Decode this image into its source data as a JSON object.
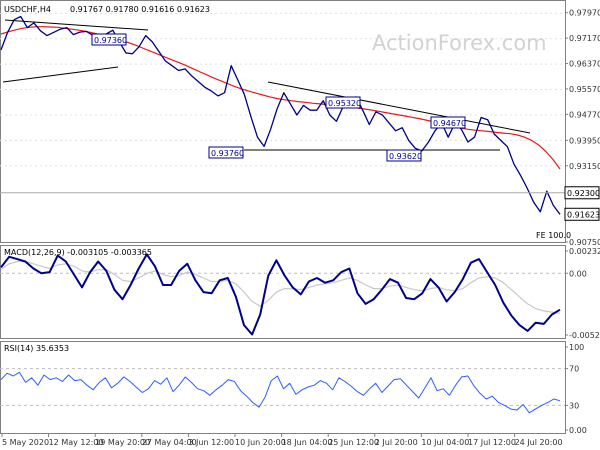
{
  "header": {
    "symbol": "USDCHF,H4",
    "ohlc": "0.91767 0.91780 0.91616 0.91623"
  },
  "watermark": "ActionForex.com",
  "colors": {
    "price": "#00008b",
    "ma": "#e31a1c",
    "macd": "#00008b",
    "signal": "#c8c8c8",
    "rsi": "#2e5cff",
    "trendline": "#000000",
    "axis": "#808080",
    "grid": "#e0e0e0"
  },
  "chart_data": [
    {
      "type": "line",
      "panel": "price",
      "y_ticks": [
        "0.97970",
        "0.97170",
        "0.96370",
        "0.95570",
        "0.94770",
        "0.93950",
        "0.93150",
        "0.90750"
      ],
      "ylim": [
        0.9075,
        0.9837
      ],
      "price_boxes": [
        "0.92300",
        "0.91623"
      ],
      "fe_label": "FE 100.0",
      "annotations": [
        "0.97360",
        "0.95320",
        "0.94670",
        "0.93760",
        "0.93620"
      ],
      "series": [
        {
          "values": [
            0.968,
            0.9735,
            0.9775,
            0.9785,
            0.975,
            0.9765,
            0.974,
            0.9725,
            0.9735,
            0.9745,
            0.975,
            0.9728,
            0.9736,
            0.9738,
            0.9725,
            0.971,
            0.973,
            0.9742,
            0.9705,
            0.967,
            0.9668,
            0.969,
            0.9725,
            0.9705,
            0.9675,
            0.9645,
            0.963,
            0.9615,
            0.962,
            0.9598,
            0.958,
            0.9562,
            0.955,
            0.9535,
            0.9545,
            0.963,
            0.9585,
            0.954,
            0.947,
            0.9405,
            0.9376,
            0.943,
            0.9495,
            0.9545,
            0.951,
            0.9475,
            0.9505,
            0.949,
            0.949,
            0.952,
            0.9475,
            0.9455,
            0.95,
            0.9525,
            0.9532,
            0.949,
            0.9445,
            0.9485,
            0.9475,
            0.945,
            0.9425,
            0.9435,
            0.9395,
            0.937,
            0.9362,
            0.939,
            0.9425,
            0.945,
            0.9405,
            0.9448,
            0.943,
            0.939,
            0.9405,
            0.9467,
            0.946,
            0.9415,
            0.9395,
            0.9375,
            0.932,
            0.9285,
            0.9245,
            0.92,
            0.917,
            0.9235,
            0.919,
            0.9162
          ]
        },
        {
          "values": [
            0.973,
            0.9737,
            0.9743,
            0.9748,
            0.9751,
            0.9753,
            0.9753,
            0.9752,
            0.9751,
            0.9748,
            0.9745,
            0.9742,
            0.9738,
            0.9733,
            0.9728,
            0.9722,
            0.9716,
            0.971,
            0.9703,
            0.9695,
            0.9686,
            0.9677,
            0.9668,
            0.9659,
            0.965,
            0.9641,
            0.9632,
            0.9622,
            0.9612,
            0.9602,
            0.9592,
            0.9583,
            0.9574,
            0.9565,
            0.9557,
            0.955,
            0.9544,
            0.9538,
            0.9532,
            0.9527,
            0.9523,
            0.952,
            0.9517,
            0.9515,
            0.9512,
            0.951,
            0.9508,
            0.9506,
            0.9504,
            0.9502,
            0.9498,
            0.9495,
            0.9492,
            0.9488,
            0.9484,
            0.948,
            0.9476,
            0.9472,
            0.9468,
            0.9464,
            0.9459,
            0.9454,
            0.9449,
            0.9444,
            0.9439,
            0.9434,
            0.943,
            0.9427,
            0.9425,
            0.9423,
            0.942,
            0.9418,
            0.9416,
            0.9412,
            0.9405,
            0.9395,
            0.938,
            0.936,
            0.9335,
            0.9305
          ]
        }
      ]
    },
    {
      "type": "line",
      "panel": "macd",
      "title": "MACD(12,26,9) -0.003105 -0.003365",
      "y_ticks": [
        "0.002325",
        "0.00",
        "-0.005201"
      ],
      "ylim": [
        -0.0055,
        0.0024
      ],
      "series": [
        {
          "values": [
            0.0005,
            0.0014,
            0.0012,
            0.001,
            0.0004,
            0.0,
            0.0001,
            0.0015,
            0.001,
            -0.0001,
            -0.0012,
            0.0001,
            0.001,
            0.0002,
            -0.0014,
            -0.0022,
            -0.001,
            0.0004,
            0.0016,
            0.0006,
            -0.001,
            -0.001,
            0.0002,
            0.0008,
            -0.0006,
            -0.0016,
            -0.0017,
            -0.0006,
            -0.0004,
            -0.002,
            -0.0044,
            -0.0052,
            -0.0035,
            -0.0002,
            0.0011,
            -0.0002,
            -0.0012,
            -0.0018,
            -0.0007,
            -0.0004,
            -0.0008,
            -0.0006,
            0.0001,
            0.0004,
            -0.0017,
            -0.0026,
            -0.0022,
            -0.0014,
            -0.0005,
            -0.0008,
            -0.0021,
            -0.0022,
            -0.0017,
            -0.0005,
            -0.0012,
            -0.0024,
            -0.0016,
            -0.0005,
            0.0009,
            0.0012,
            0.0001,
            -0.001,
            -0.0025,
            -0.0036,
            -0.0044,
            -0.0049,
            -0.0042,
            -0.0043,
            -0.0035,
            -0.0031
          ]
        },
        {
          "values": [
            0.0003,
            0.0008,
            0.001,
            0.001,
            0.0008,
            0.0006,
            0.0004,
            0.0007,
            0.0008,
            0.0006,
            0.0002,
            0.0001,
            0.0003,
            0.0003,
            -0.0001,
            -0.0006,
            -0.0007,
            -0.0004,
            0.0,
            0.0002,
            -0.0001,
            -0.0003,
            -0.0002,
            0.0001,
            -0.0001,
            -0.0004,
            -0.0007,
            -0.0007,
            -0.0006,
            -0.0009,
            -0.0016,
            -0.0024,
            -0.0028,
            -0.0023,
            -0.0016,
            -0.0013,
            -0.0013,
            -0.0014,
            -0.0012,
            -0.001,
            -0.0009,
            -0.0008,
            -0.0006,
            -0.0004,
            -0.0006,
            -0.001,
            -0.0013,
            -0.0013,
            -0.0011,
            -0.001,
            -0.0012,
            -0.0014,
            -0.0015,
            -0.0013,
            -0.0012,
            -0.0014,
            -0.0015,
            -0.0013,
            -0.0008,
            -0.0004,
            -0.0003,
            -0.0004,
            -0.0008,
            -0.0014,
            -0.002,
            -0.0026,
            -0.003,
            -0.0032,
            -0.0033,
            -0.0034
          ]
        }
      ]
    },
    {
      "type": "line",
      "panel": "rsi",
      "title": "RSI(14) 35.6353",
      "y_ticks": [
        "100",
        "70",
        "30",
        "0.00"
      ],
      "ylim": [
        0,
        100
      ],
      "series": [
        {
          "values": [
            58,
            65,
            62,
            66,
            55,
            60,
            52,
            63,
            58,
            60,
            56,
            63,
            57,
            58,
            52,
            47,
            55,
            60,
            49,
            54,
            61,
            56,
            50,
            44,
            48,
            57,
            53,
            60,
            45,
            52,
            61,
            55,
            48,
            46,
            41,
            47,
            52,
            58,
            56,
            46,
            40,
            33,
            28,
            39,
            57,
            62,
            48,
            54,
            42,
            47,
            50,
            52,
            57,
            54,
            47,
            60,
            56,
            51,
            45,
            41,
            48,
            54,
            44,
            51,
            58,
            59,
            52,
            45,
            38,
            49,
            60,
            46,
            48,
            41,
            52,
            61,
            62,
            51,
            43,
            37,
            40,
            33,
            30,
            26,
            25,
            31,
            22,
            26,
            30,
            33,
            37,
            35
          ]
        }
      ]
    }
  ],
  "x_axis": {
    "labels": [
      "5 May 2020",
      "12 May 12:00",
      "19 May 20:00",
      "27 May 04:00",
      "3 Jun 12:00",
      "10 Jun 20:00",
      "18 Jun 04:00",
      "25 Jun 12:00",
      "2 Jul 20:00",
      "10 Jul 04:00",
      "17 Jul 12:00",
      "24 Jul 20:00"
    ]
  }
}
